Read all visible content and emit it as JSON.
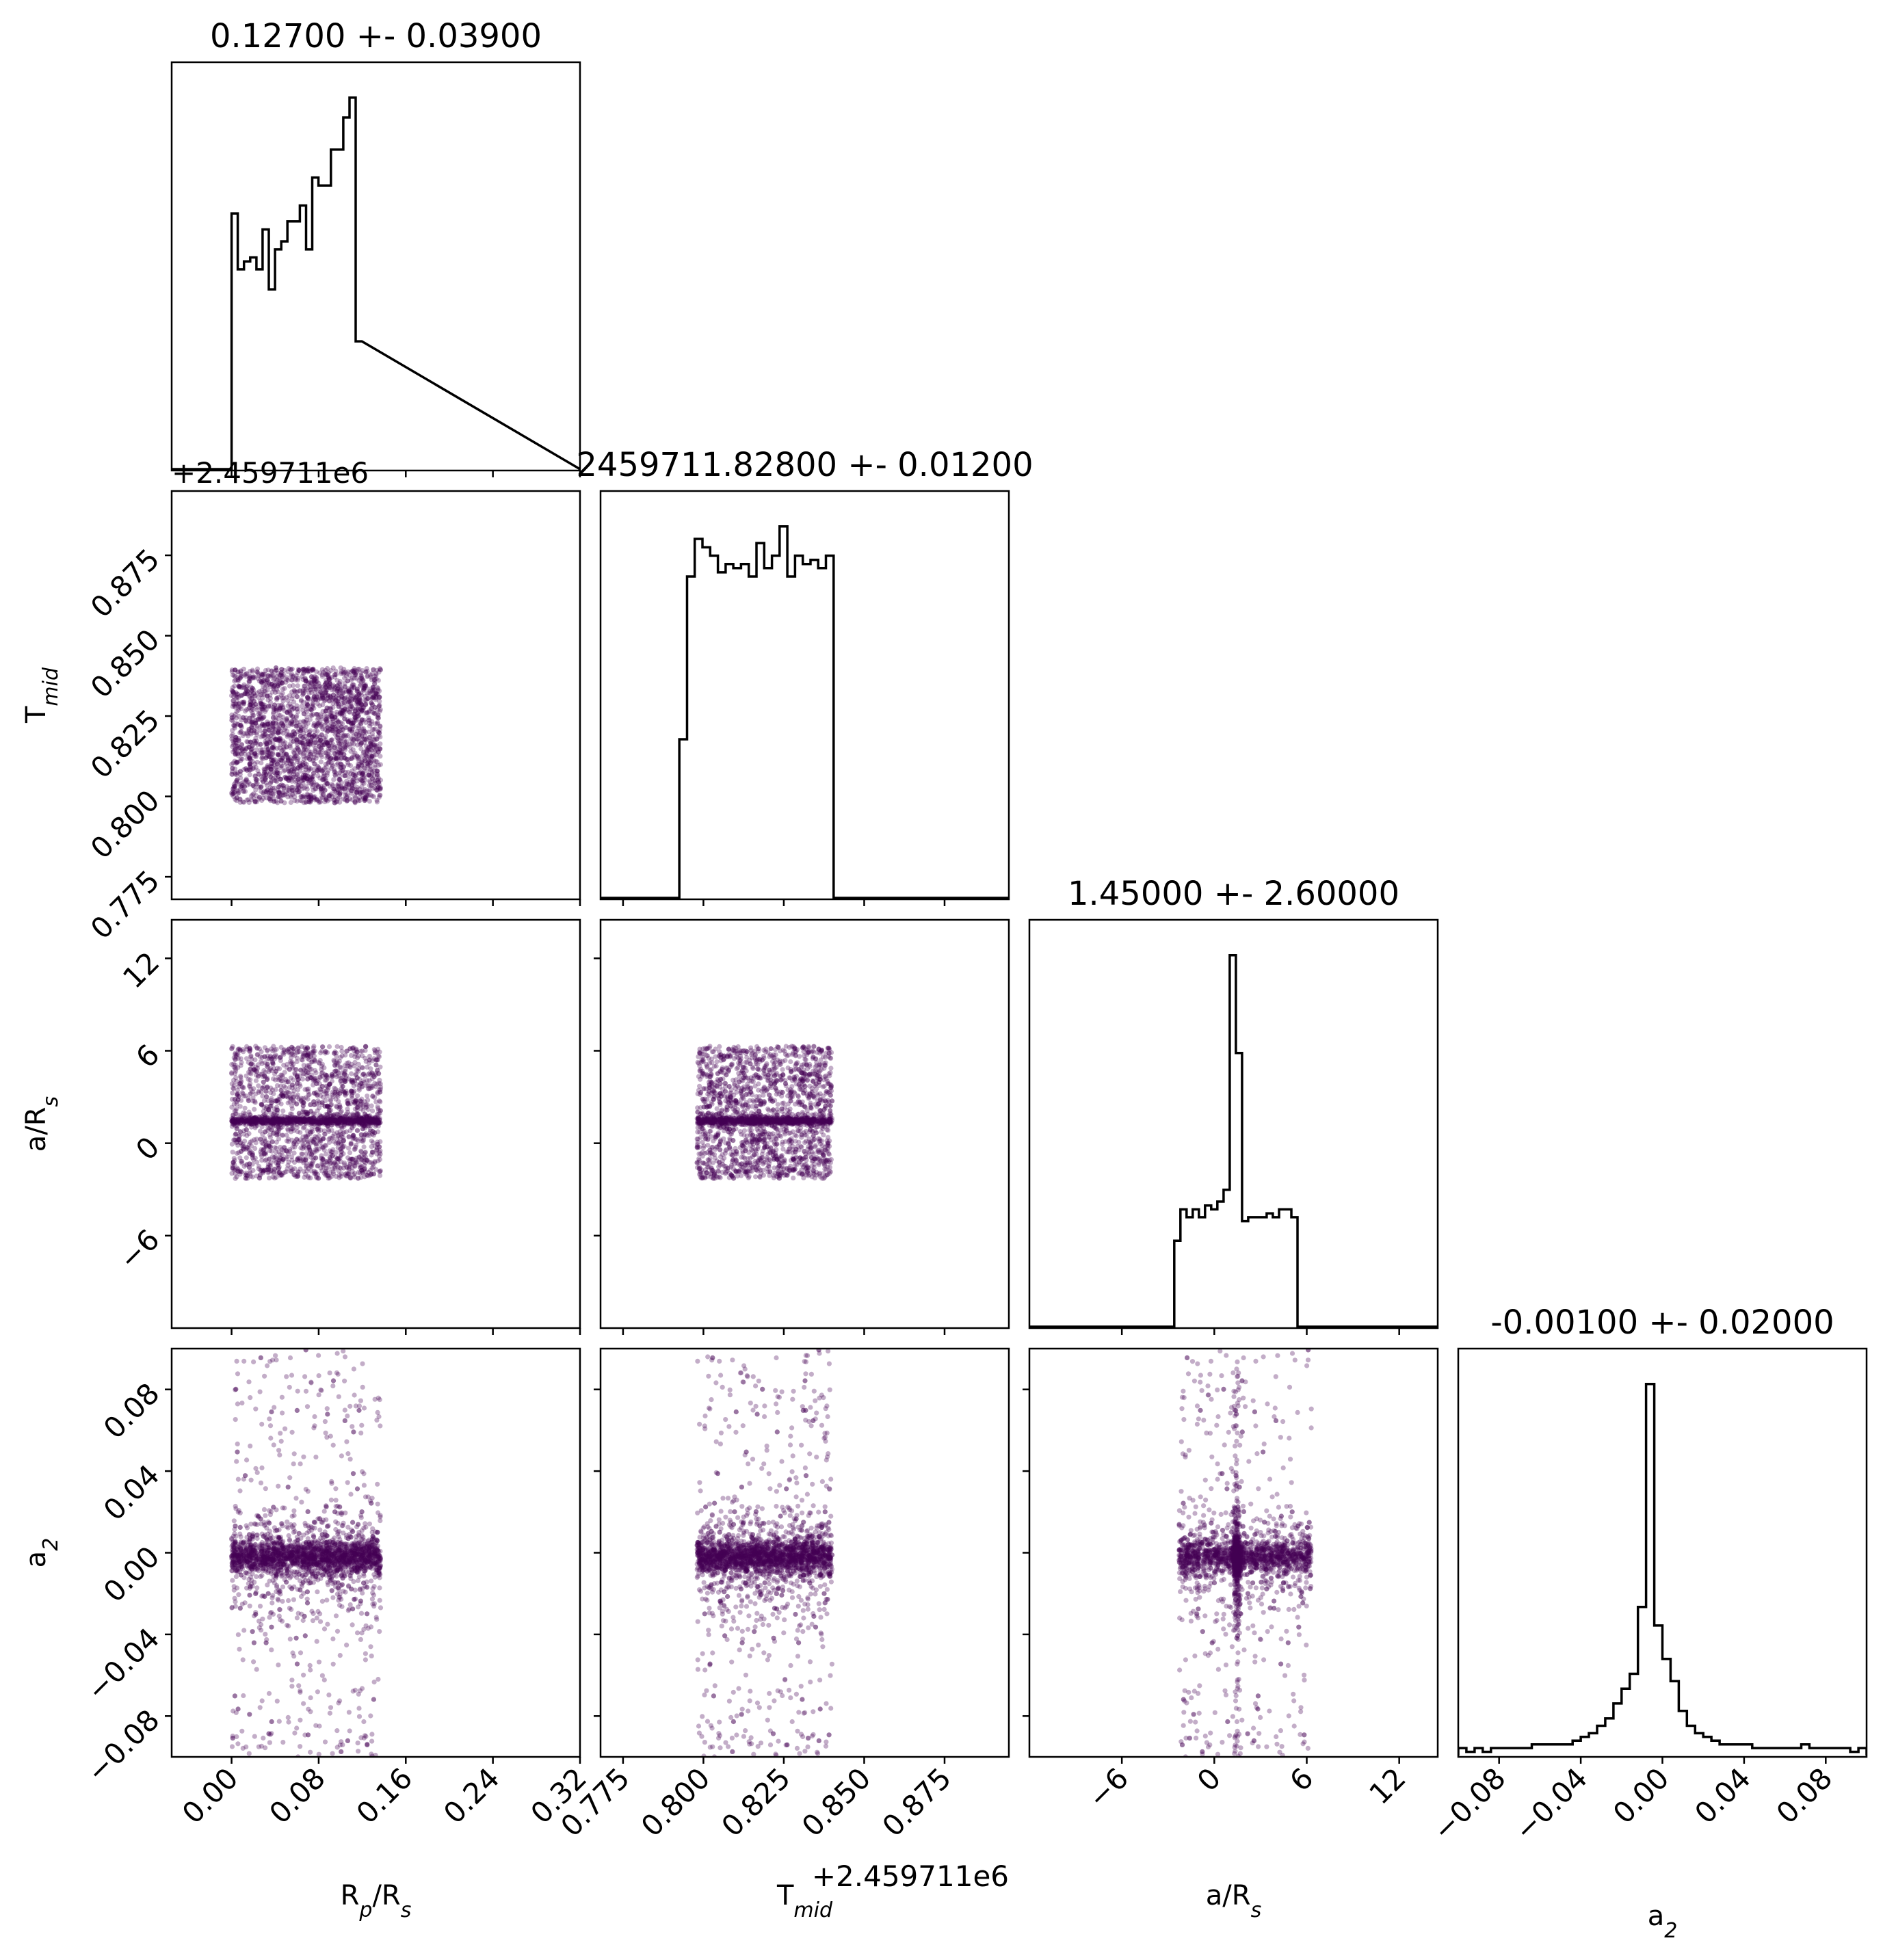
{
  "chart_data": {
    "type": "corner",
    "parameters": [
      {
        "key": "rp",
        "label_main": "R",
        "label_sub": "p",
        "label_mid": "/R",
        "label_sub2": "s",
        "title": "0.12700 +- 0.03900",
        "range": [
          -0.055,
          0.32
        ],
        "ticks": [
          "0.00",
          "0.08",
          "0.16",
          "0.24",
          "0.32"
        ],
        "tick_values": [
          0.0,
          0.08,
          0.16,
          0.24,
          0.32
        ],
        "hist": {
          "edges_start": 0.0,
          "bin_width": 0.0057,
          "counts": [
            64,
            50,
            52,
            53,
            50,
            60,
            45,
            55,
            57,
            62,
            62,
            66,
            55,
            73,
            71,
            71,
            80,
            80,
            88,
            93,
            32
          ]
        }
      },
      {
        "key": "tmid",
        "label_main": "T",
        "label_sub": "mid",
        "offset_text": "+2.459711e6",
        "title": "2459711.82800 +- 0.01200",
        "range": [
          0.768,
          0.895
        ],
        "ticks": [
          "0.775",
          "0.800",
          "0.825",
          "0.850",
          "0.875"
        ],
        "tick_values": [
          0.775,
          0.8,
          0.825,
          0.85,
          0.875
        ],
        "hist": {
          "edges_start": 0.7925,
          "bin_width": 0.0024,
          "counts": [
            38,
            77,
            86,
            84,
            82,
            78,
            80,
            79,
            80,
            77,
            85,
            79,
            82,
            89,
            77,
            82,
            80,
            81,
            79,
            82,
            0
          ]
        }
      },
      {
        "key": "ars",
        "label_main": "a/R",
        "label_sub": "s",
        "title": "1.45000 +- 2.60000",
        "range": [
          -12.0,
          14.5
        ],
        "ticks": [
          "−6",
          "0",
          "6",
          "12"
        ],
        "tick_values": [
          -6,
          0,
          6,
          12
        ],
        "hist": {
          "edges_start": -2.6,
          "bin_width": 0.4,
          "counts": [
            22,
            30,
            28,
            30,
            28,
            31,
            30,
            32,
            35,
            95,
            70,
            27,
            28,
            28,
            28,
            29,
            28,
            30,
            30,
            28,
            0
          ]
        }
      },
      {
        "key": "a2",
        "label_main": "a",
        "label_sub": "2",
        "title": "-0.00100 +- 0.02000",
        "range": [
          -0.1,
          0.1
        ],
        "ticks": [
          "−0.08",
          "−0.04",
          "0.00",
          "0.04",
          "0.08"
        ],
        "tick_values": [
          -0.08,
          -0.04,
          0.0,
          0.04,
          0.08
        ],
        "hist": {
          "edges_start": -0.1,
          "bin_width": 0.004,
          "counts": [
            2,
            1,
            2,
            1,
            2,
            2,
            2,
            2,
            2,
            3,
            3,
            3,
            3,
            3,
            4,
            5,
            6,
            8,
            10,
            14,
            18,
            22,
            40,
            100,
            35,
            26,
            20,
            12,
            8,
            6,
            5,
            4,
            3,
            3,
            3,
            3,
            2,
            2,
            2,
            2,
            2,
            2,
            3,
            2,
            2,
            2,
            2,
            2,
            1,
            2
          ]
        }
      }
    ],
    "left_ticks": {
      "tmid": [
        "0.775",
        "0.800",
        "0.825",
        "0.850",
        "0.875"
      ],
      "ars": [
        "−6",
        "0",
        "6",
        "12"
      ],
      "a2": [
        "−0.08",
        "−0.04",
        "0.00",
        "0.04",
        "0.08"
      ]
    },
    "samples": {
      "rp_uniform": [
        0.0,
        0.137
      ],
      "tmid_uniform": [
        0.798,
        0.84
      ],
      "ars_uniform": [
        -2.3,
        6.3
      ],
      "ars_concentration": 1.45,
      "a2_center": -0.002
    },
    "colors": {
      "scatter": "#440154",
      "line": "#000000"
    }
  }
}
